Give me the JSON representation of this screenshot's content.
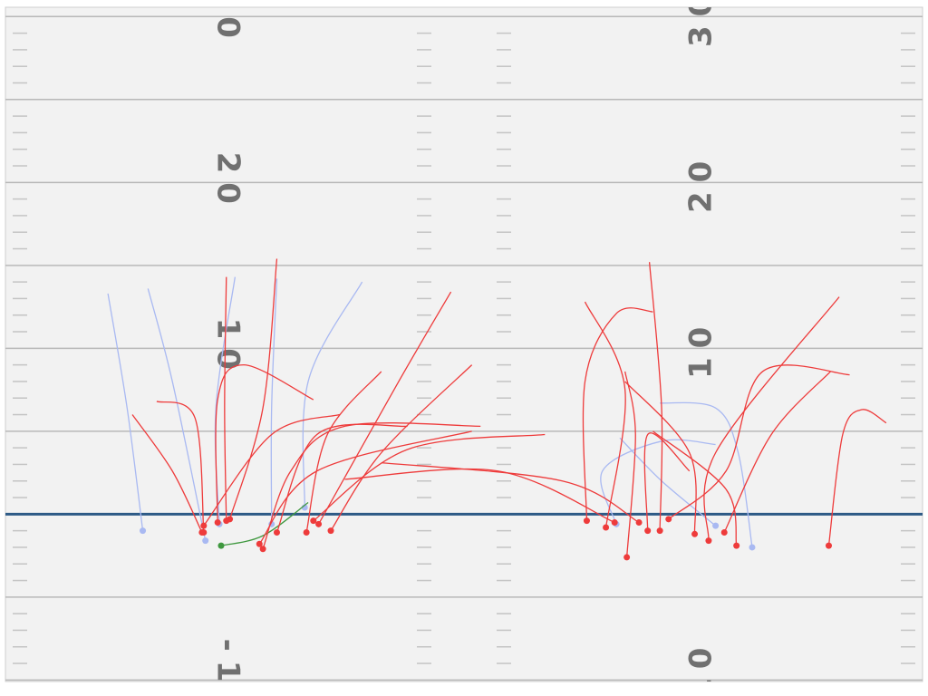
{
  "chart_data": {
    "type": "line",
    "xlim": [
      0,
      53.3
    ],
    "ylim": [
      -10.5,
      31
    ],
    "yticks": [
      -10,
      10,
      20,
      30
    ],
    "minor_yticks": [
      -5,
      0,
      5,
      15,
      25
    ],
    "line_of_scrimmage": 0,
    "line_of_scrimmage_color": "#2d5a86",
    "field_color": "#f2f2f2",
    "series": [
      {
        "color": "#a9b9f2",
        "x": [
          8.2,
          7.3,
          6.2
        ],
        "values": [
          -1.0,
          6.4,
          13.3
        ]
      },
      {
        "color": "#a9b9f2",
        "x": [
          11.8,
          9.9,
          8.5
        ],
        "values": [
          -1.6,
          8.0,
          13.6
        ]
      },
      {
        "color": "#a9b9f2",
        "x": [
          12.6,
          12.4,
          13.5
        ],
        "values": [
          -0.6,
          6.4,
          14.3
        ]
      },
      {
        "color": "#a9b9f2",
        "x": [
          15.6,
          15.6,
          15.9
        ],
        "values": [
          -0.6,
          6.4,
          14.2
        ]
      },
      {
        "color": "#a9b9f2",
        "x": [
          17.5,
          17.7,
          20.8
        ],
        "values": [
          0.4,
          8.0,
          14.0
        ]
      },
      {
        "color": "#a9b9f2",
        "x": [
          35.4,
          34.6,
          38.0,
          41.1
        ],
        "values": [
          -0.6,
          2.6,
          4.4,
          4.2
        ]
      },
      {
        "color": "#a9b9f2",
        "x": [
          41.1,
          38.0,
          35.6
        ],
        "values": [
          -0.7,
          2.0,
          4.6
        ]
      },
      {
        "color": "#a9b9f2",
        "x": [
          43.2,
          42.4,
          41.1,
          37.9
        ],
        "values": [
          -2.0,
          3.7,
          6.4,
          6.7
        ]
      },
      {
        "color": "#3f983f",
        "x": [
          12.7,
          15.1,
          17.7
        ],
        "values": [
          -1.9,
          -1.3,
          0.7
        ]
      },
      {
        "color": "#ee3b3b",
        "x": [
          11.6,
          9.9,
          7.6
        ],
        "values": [
          -1.1,
          2.6,
          6.0
        ]
      },
      {
        "color": "#ee3b3b",
        "x": [
          11.7,
          11.2,
          9.0
        ],
        "values": [
          -1.1,
          5.8,
          6.8
        ]
      },
      {
        "color": "#ee3b3b",
        "x": [
          13.0,
          12.9,
          13.0
        ],
        "values": [
          -0.4,
          6.4,
          14.3
        ]
      },
      {
        "color": "#ee3b3b",
        "x": [
          13.2,
          15.1,
          15.9
        ],
        "values": [
          -0.3,
          6.4,
          15.4
        ]
      },
      {
        "color": "#ee3b3b",
        "x": [
          15.1,
          16.7,
          19.8,
          27.6
        ],
        "values": [
          -2.1,
          2.6,
          5.3,
          5.3
        ]
      },
      {
        "color": "#ee3b3b",
        "x": [
          15.9,
          18.2,
          23.4
        ],
        "values": [
          -1.1,
          4.8,
          5.3
        ]
      },
      {
        "color": "#ee3b3b",
        "x": [
          17.6,
          18.8,
          21.9
        ],
        "values": [
          -1.1,
          4.8,
          8.6
        ]
      },
      {
        "color": "#ee3b3b",
        "x": [
          18.3,
          22.9,
          25.9
        ],
        "values": [
          -0.6,
          8.0,
          13.4
        ]
      },
      {
        "color": "#ee3b3b",
        "x": [
          19.0,
          21.9,
          27.1
        ],
        "values": [
          -1.0,
          3.7,
          9.0
        ]
      },
      {
        "color": "#ee3b3b",
        "x": [
          18.0,
          23.4,
          31.3
        ],
        "values": [
          -0.4,
          3.9,
          4.8
        ]
      },
      {
        "color": "#ee3b3b",
        "x": [
          12.5,
          12.5,
          14.0,
          18.0
        ],
        "values": [
          -0.5,
          6.9,
          9.0,
          6.9
        ]
      },
      {
        "color": "#ee3b3b",
        "x": [
          14.9,
          18.2,
          27.1
        ],
        "values": [
          -1.8,
          2.6,
          5.0
        ]
      },
      {
        "color": "#ee3b3b",
        "x": [
          33.7,
          33.6,
          35.4,
          37.5
        ],
        "values": [
          -0.4,
          8.0,
          12.1,
          12.2
        ]
      },
      {
        "color": "#ee3b3b",
        "x": [
          34.8,
          35.9,
          33.6
        ],
        "values": [
          -0.8,
          7.5,
          12.8
        ]
      },
      {
        "color": "#ee3b3b",
        "x": [
          36.0,
          36.5,
          35.9
        ],
        "values": [
          -2.6,
          4.8,
          8.6
        ]
      },
      {
        "color": "#ee3b3b",
        "x": [
          36.7,
          32.3,
          21.9
        ],
        "values": [
          -0.5,
          2.0,
          3.1
        ]
      },
      {
        "color": "#ee3b3b",
        "x": [
          37.2,
          37.2,
          39.6
        ],
        "values": [
          -1.0,
          4.8,
          2.6
        ]
      },
      {
        "color": "#ee3b3b",
        "x": [
          37.9,
          38.0,
          37.3
        ],
        "values": [
          -1.0,
          6.4,
          15.2
        ]
      },
      {
        "color": "#ee3b3b",
        "x": [
          38.4,
          41.7,
          43.8,
          48.8
        ],
        "values": [
          -0.3,
          2.6,
          8.6,
          8.4
        ]
      },
      {
        "color": "#ee3b3b",
        "x": [
          39.9,
          39.6,
          35.9
        ],
        "values": [
          -1.2,
          3.7,
          8.0
        ]
      },
      {
        "color": "#ee3b3b",
        "x": [
          40.7,
          41.1,
          48.2
        ],
        "values": [
          -1.6,
          3.7,
          13.1
        ]
      },
      {
        "color": "#ee3b3b",
        "x": [
          41.6,
          44.3,
          47.7
        ],
        "values": [
          -1.1,
          4.8,
          8.6
        ]
      },
      {
        "color": "#ee3b3b",
        "x": [
          42.3,
          41.7,
          37.5
        ],
        "values": [
          -1.9,
          1.5,
          5.0
        ]
      },
      {
        "color": "#ee3b3b",
        "x": [
          47.6,
          48.4,
          49.5,
          50.9
        ],
        "values": [
          -1.9,
          4.8,
          6.3,
          5.5
        ]
      },
      {
        "color": "#ee3b3b",
        "x": [
          35.3,
          28.6,
          19.8
        ],
        "values": [
          -0.5,
          2.6,
          2.1
        ]
      },
      {
        "color": "#ee3b3b",
        "x": [
          11.7,
          15.6,
          19.5
        ],
        "values": [
          -0.7,
          4.8,
          6.0
        ]
      }
    ]
  }
}
